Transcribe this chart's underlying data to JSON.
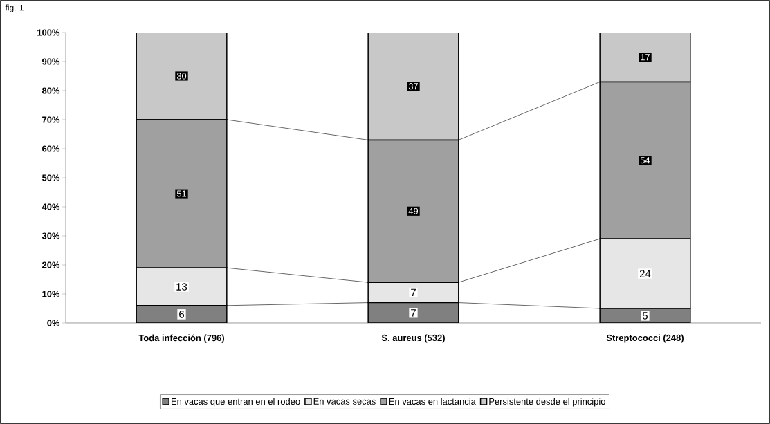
{
  "chart_data": {
    "type": "bar",
    "stacked": true,
    "title": "fig. 1",
    "categories": [
      "Toda infección (796)",
      "S. aureus (532)",
      "Streptococci (248)"
    ],
    "series": [
      {
        "name": "En vacas que entran en el rodeo",
        "color": "#808080",
        "values": [
          6,
          7,
          5
        ]
      },
      {
        "name": "En vacas secas",
        "color": "#e6e6e6",
        "values": [
          13,
          7,
          24
        ]
      },
      {
        "name": "En vacas en lactancia",
        "color": "#a0a0a0",
        "values": [
          51,
          49,
          54
        ]
      },
      {
        "name": "Persistente desde el principio",
        "color": "#c8c8c8",
        "values": [
          30,
          37,
          17
        ]
      }
    ],
    "ylim": [
      0,
      100
    ],
    "yticks": [
      {
        "value": 0,
        "label": "0%"
      },
      {
        "value": 10,
        "label": "10%"
      },
      {
        "value": 20,
        "label": "20%"
      },
      {
        "value": 30,
        "label": "30%"
      },
      {
        "value": 40,
        "label": "40%"
      },
      {
        "value": 50,
        "label": "50%"
      },
      {
        "value": 60,
        "label": "60%"
      },
      {
        "value": 70,
        "label": "70%"
      },
      {
        "value": 80,
        "label": "80%"
      },
      {
        "value": 90,
        "label": "90%"
      },
      {
        "value": 100,
        "label": "100%"
      }
    ],
    "data_labels": true,
    "legend": "bottom",
    "grid": false
  }
}
